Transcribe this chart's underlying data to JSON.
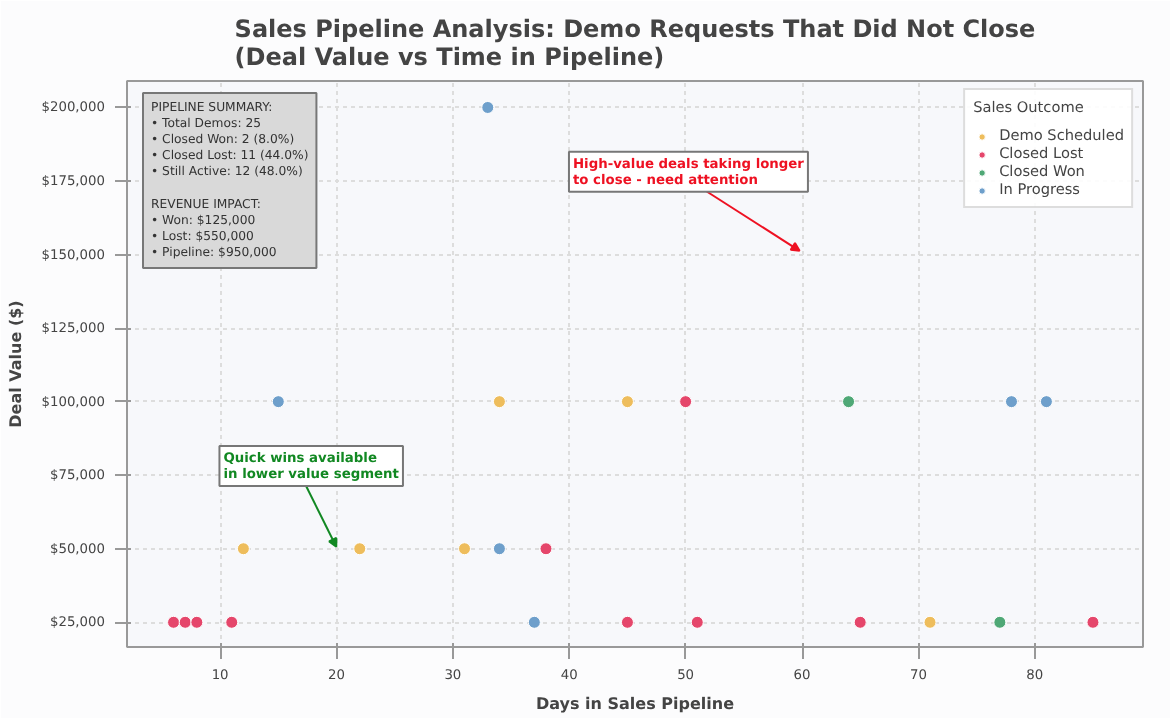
{
  "chart_data": {
    "type": "scatter",
    "title": "Sales Pipeline Analysis: Demo Requests That Did Not Close\n(Deal Value vs Time in Pipeline)",
    "xlabel": "Days in Sales Pipeline",
    "ylabel": "Deal Value ($)",
    "legend_title": "Sales Outcome",
    "series": [
      {
        "name": "Demo Scheduled",
        "color": "#eebd5c",
        "x": [
          34,
          45,
          12,
          22,
          31,
          71
        ],
        "values": [
          100000,
          100000,
          50000,
          50000,
          50000,
          25000
        ]
      },
      {
        "name": "Closed Lost",
        "color": "#e5466b",
        "x": [
          50,
          38,
          6,
          7,
          8,
          11,
          45,
          51,
          65,
          85
        ],
        "values": [
          100000,
          50000,
          25000,
          25000,
          25000,
          25000,
          25000,
          25000,
          25000,
          25000
        ]
      },
      {
        "name": "Closed Won",
        "color": "#4fa876",
        "x": [
          64,
          77
        ],
        "values": [
          100000,
          25000
        ]
      },
      {
        "name": "In Progress",
        "color": "#6e9fcb",
        "x": [
          33,
          15,
          78,
          81,
          34,
          37
        ],
        "values": [
          200000,
          100000,
          100000,
          100000,
          50000,
          25000
        ]
      }
    ],
    "xlim": [
      2,
      89.3
    ],
    "ylim": [
      16600,
      209000
    ],
    "xticks": [
      10,
      20,
      30,
      40,
      50,
      60,
      70,
      80
    ],
    "yticks": [
      {
        "value": 25000,
        "label": "$25,000"
      },
      {
        "value": 50000,
        "label": "$50,000"
      },
      {
        "value": 75000,
        "label": "$75,000"
      },
      {
        "value": 100000,
        "label": "$100,000"
      },
      {
        "value": 125000,
        "label": "$125,000"
      },
      {
        "value": 150000,
        "label": "$150,000"
      },
      {
        "value": 175000,
        "label": "$175,000"
      },
      {
        "value": 200000,
        "label": "$200,000"
      }
    ],
    "annotations": [
      "PIPELINE SUMMARY:\n• Total Demos: 25\n• Closed Won: 2 (8.0%)\n• Closed Lost: 11 (44.0%)\n• Still Active: 12 (48.0%)\n\nREVENUE IMPACT:\n• Won: $125,000\n• Lost: $550,000\n• Pipeline: $950,000",
      "High-value deals taking longer\nto close - need attention",
      "Quick wins available\nin lower value segment"
    ],
    "grid": true,
    "legend": "top right",
    "marker": "circle"
  }
}
